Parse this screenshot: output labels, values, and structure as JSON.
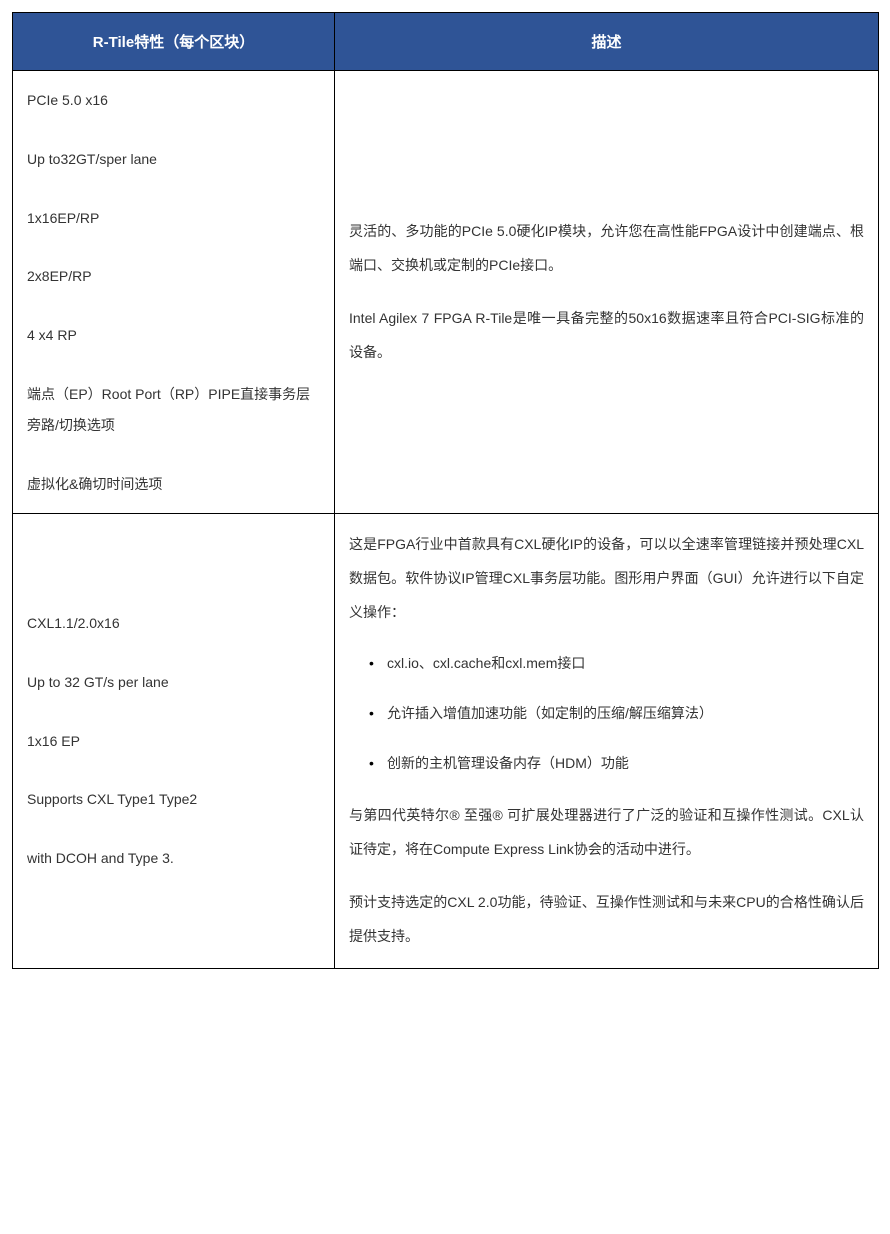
{
  "table": {
    "header": {
      "feature": "R-Tile特性（每个区块）",
      "description": "描述"
    },
    "header_bg": "#2f5496",
    "header_fg": "#ffffff",
    "border_color": "#000000",
    "text_color": "#333333",
    "font_size_pt": 11,
    "rows": [
      {
        "feature_lines": [
          "PCIe 5.0 x16",
          "Up to32GT/sper lane",
          "1x16EP/RP",
          "2x8EP/RP",
          "4 x4 RP",
          "端点（EP）Root Port（RP）PIPE直接事务层旁路/切换选项",
          "虚拟化&确切时间选项"
        ],
        "desc_paragraphs": [
          "灵活的、多功能的PCIe 5.0硬化IP模块，允许您在高性能FPGA设计中创建端点、根端口、交换机或定制的PCIe接口。",
          "Intel Agilex 7 FPGA R-Tile是唯一具备完整的50x16数据速率且符合PCI-SIG标准的设备。"
        ],
        "desc_bullets": []
      },
      {
        "feature_lines": [
          "CXL1.1/2.0x16",
          "Up to 32 GT/s per lane",
          "1x16 EP",
          "Supports CXL Type1 Type2",
          "with DCOH and Type 3."
        ],
        "desc_intro": "这是FPGA行业中首款具有CXL硬化IP的设备，可以以全速率管理链接并预处理CXL数据包。软件协议IP管理CXL事务层功能。图形用户界面（GUI）允许进行以下自定义操作：",
        "desc_bullets": [
          "cxl.io、cxl.cache和cxl.mem接口",
          "允许插入增值加速功能（如定制的压缩/解压缩算法）",
          "创新的主机管理设备内存（HDM）功能"
        ],
        "desc_after": [
          "与第四代英特尔® 至强® 可扩展处理器进行了广泛的验证和互操作性测试。CXL认证待定，将在Compute Express Link协会的活动中进行。",
          "预计支持选定的CXL 2.0功能，待验证、互操作性测试和与未来CPU的合格性确认后提供支持。"
        ]
      }
    ]
  }
}
